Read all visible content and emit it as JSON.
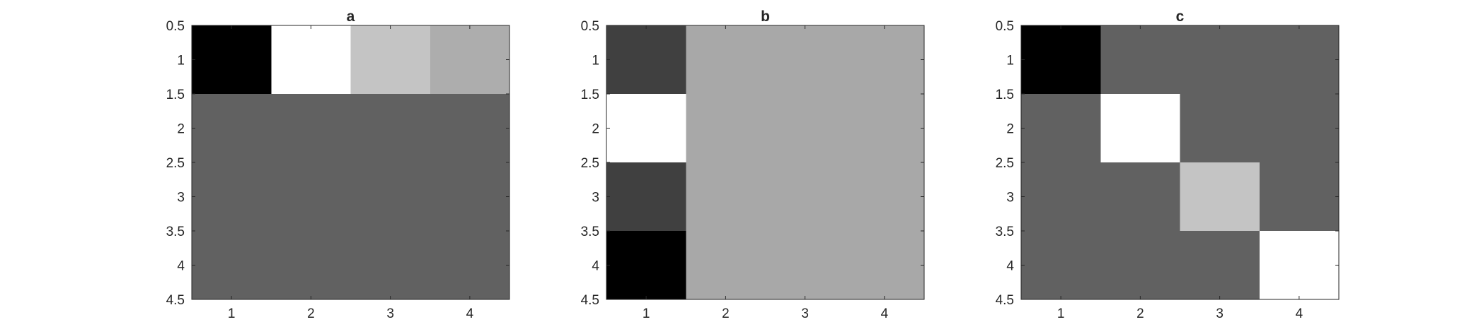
{
  "chart_data": [
    {
      "type": "heatmap",
      "title": "a",
      "colormap": "gray",
      "x_ticks": [
        "1",
        "2",
        "3",
        "4"
      ],
      "y_ticks": [
        "0.5",
        "1",
        "1.5",
        "2",
        "2.5",
        "3",
        "3.5",
        "4",
        "4.5"
      ],
      "xlim": [
        0.5,
        4.5
      ],
      "ylim": [
        0.5,
        4.5
      ],
      "y_direction": "reverse",
      "gray_levels": [
        [
          "#000000",
          "#ffffff",
          "#c4c4c4",
          "#adadad"
        ],
        [
          "#616161",
          "#616161",
          "#616161",
          "#616161"
        ],
        [
          "#616161",
          "#616161",
          "#616161",
          "#616161"
        ],
        [
          "#616161",
          "#616161",
          "#616161",
          "#616161"
        ]
      ]
    },
    {
      "type": "heatmap",
      "title": "b",
      "colormap": "gray",
      "x_ticks": [
        "1",
        "2",
        "3",
        "4"
      ],
      "y_ticks": [
        "0.5",
        "1",
        "1.5",
        "2",
        "2.5",
        "3",
        "3.5",
        "4",
        "4.5"
      ],
      "xlim": [
        0.5,
        4.5
      ],
      "ylim": [
        0.5,
        4.5
      ],
      "y_direction": "reverse",
      "gray_levels": [
        [
          "#404040",
          "#a8a8a8",
          "#a8a8a8",
          "#a8a8a8"
        ],
        [
          "#ffffff",
          "#a8a8a8",
          "#a8a8a8",
          "#a8a8a8"
        ],
        [
          "#404040",
          "#a8a8a8",
          "#a8a8a8",
          "#a8a8a8"
        ],
        [
          "#000000",
          "#a8a8a8",
          "#a8a8a8",
          "#a8a8a8"
        ]
      ]
    },
    {
      "type": "heatmap",
      "title": "c",
      "colormap": "gray",
      "x_ticks": [
        "1",
        "2",
        "3",
        "4"
      ],
      "y_ticks": [
        "0.5",
        "1",
        "1.5",
        "2",
        "2.5",
        "3",
        "3.5",
        "4",
        "4.5"
      ],
      "xlim": [
        0.5,
        4.5
      ],
      "ylim": [
        0.5,
        4.5
      ],
      "y_direction": "reverse",
      "gray_levels": [
        [
          "#000000",
          "#616161",
          "#616161",
          "#616161"
        ],
        [
          "#616161",
          "#ffffff",
          "#616161",
          "#616161"
        ],
        [
          "#616161",
          "#616161",
          "#c4c4c4",
          "#616161"
        ],
        [
          "#616161",
          "#616161",
          "#616161",
          "#ffffff"
        ]
      ]
    }
  ]
}
